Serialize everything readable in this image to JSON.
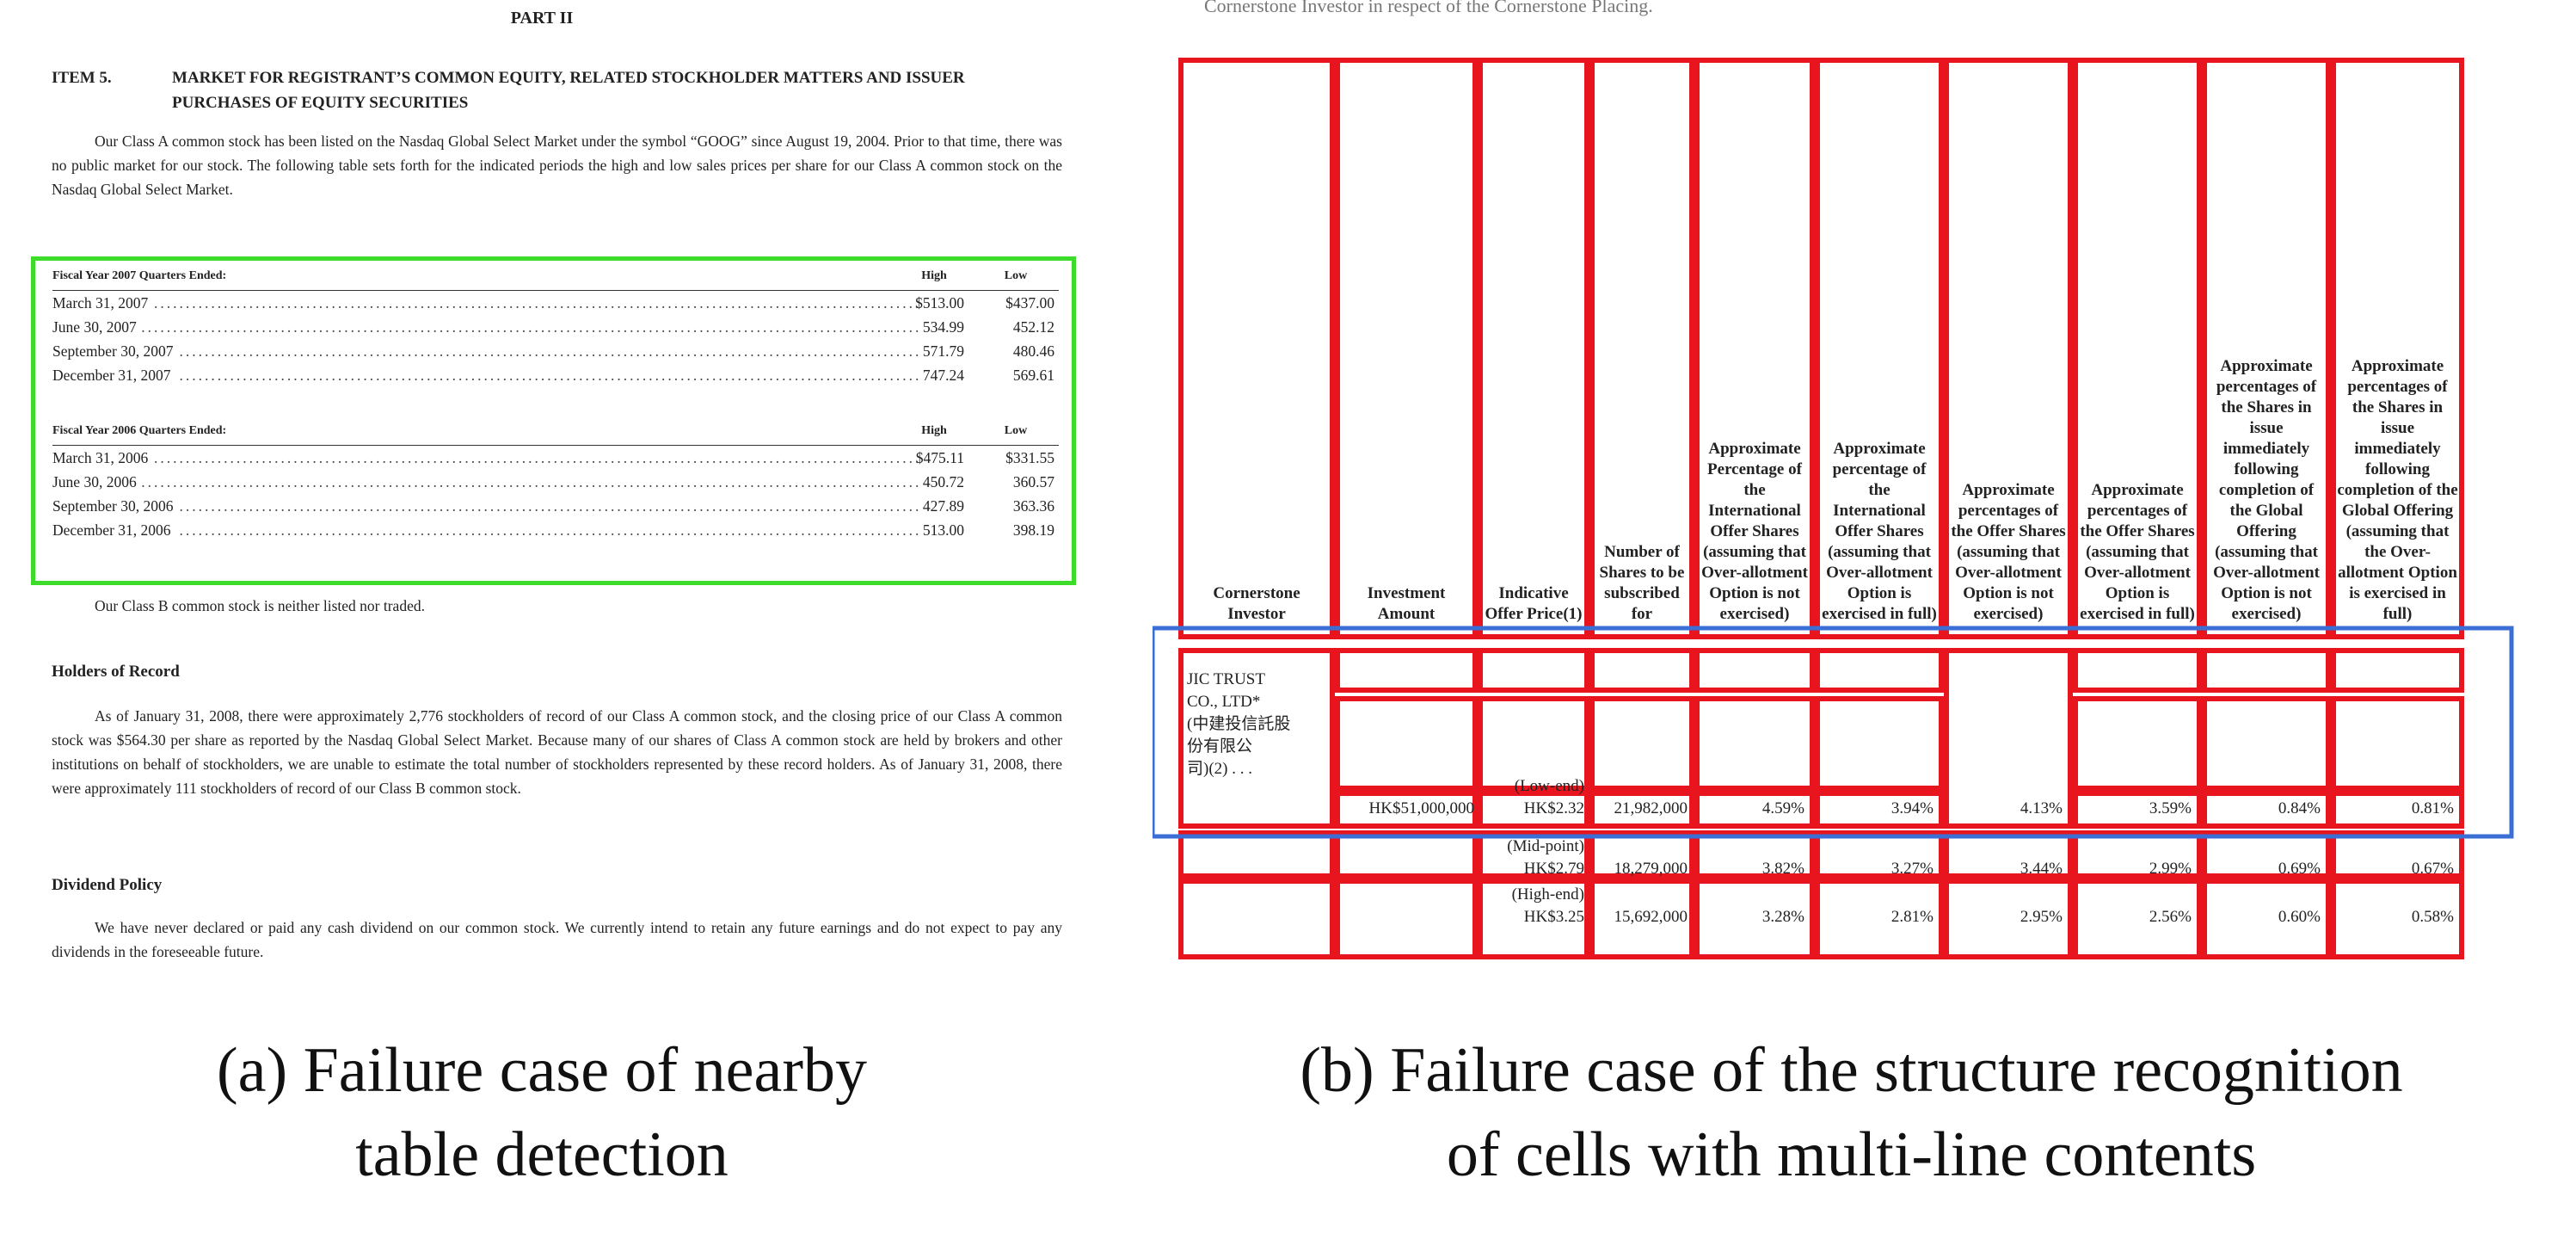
{
  "panel_a": {
    "part": "PART II",
    "item_number": "ITEM 5.",
    "item_title": "MARKET FOR REGISTRANT’S COMMON EQUITY, RELATED STOCKHOLDER MATTERS AND ISSUER PURCHASES OF EQUITY SECURITIES",
    "intro": "Our Class A common stock has been listed on the Nasdaq Global Select Market under the symbol “GOOG” since August 19, 2004. Prior to that time, there was no public market for our stock. The following table sets forth for the indicated periods the high and low sales prices per share for our Class A common stock on the Nasdaq Global Select Market.",
    "table_2007": {
      "label": "Fiscal Year 2007 Quarters Ended:",
      "col_high": "High",
      "col_low": "Low",
      "rows": [
        {
          "period": "March 31, 2007",
          "high": "$513.00",
          "low": "$437.00"
        },
        {
          "period": "June 30, 2007",
          "high": "534.99",
          "low": "452.12"
        },
        {
          "period": "September 30, 2007",
          "high": "571.79",
          "low": "480.46"
        },
        {
          "period": "December 31, 2007",
          "high": "747.24",
          "low": "569.61"
        }
      ]
    },
    "table_2006": {
      "label": "Fiscal Year 2006 Quarters Ended:",
      "col_high": "High",
      "col_low": "Low",
      "rows": [
        {
          "period": "March 31, 2006",
          "high": "$475.11",
          "low": "$331.55"
        },
        {
          "period": "June 30, 2006",
          "high": "450.72",
          "low": "360.57"
        },
        {
          "period": "September 30, 2006",
          "high": "427.89",
          "low": "363.36"
        },
        {
          "period": "December 31, 2006",
          "high": "513.00",
          "low": "398.19"
        }
      ]
    },
    "class_b": "Our Class B common stock is neither listed nor traded.",
    "holders_heading": "Holders of Record",
    "holders_text": "As of January 31, 2008, there were approximately 2,776 stockholders of record of our Class A common stock, and the closing price of our Class A common stock was $564.30 per share as reported by the Nasdaq Global Select Market. Because many of our shares of Class A common stock are held by brokers and other institutions on behalf of stockholders, we are unable to estimate the total number of stockholders represented by these record holders. As of January 31, 2008, there were approximately 111 stockholders of record of our Class B common stock.",
    "dividend_heading": "Dividend Policy",
    "dividend_text": "We have never declared or paid any cash dividend on our common stock. We currently intend to retain any future earnings and do not expect to pay any dividends in the foreseeable future.",
    "caption_line1": "(a) Failure case of nearby",
    "caption_line2": "table detection"
  },
  "panel_b": {
    "top_text": "Cornerstone Investor in respect of the Cornerstone Placing.",
    "headers": [
      "Cornerstone Investor",
      "Investment Amount",
      "Indicative Offer Price(1)",
      "Number of Shares to be subscribed for",
      "Approximate Percentage of the International Offer Shares (assuming that Over-allotment Option is not exercised)",
      "Approximate percentage of the International Offer Shares (assuming that Over-allotment Option is exercised in full)",
      "Approximate percentages of the Offer Shares (assuming that Over-allotment Option is not exercised)",
      "Approximate percentages of the Offer Shares (assuming that Over-allotment Option is exercised in full)",
      "Approximate percentages of the Shares in issue immediately following completion of the Global Offering (assuming that Over-allotment Option is not exercised)",
      "Approximate percentages of the Shares in issue immediately following completion of the Global Offering (assuming that the Over-allotment Option is exercised in full)"
    ],
    "investor_lines": [
      "JIC TRUST",
      "CO., LTD*",
      "(中建投信託股",
      "份有限公",
      "司)(2) . . ."
    ],
    "investment_amount": "HK$51,000,000",
    "rows": [
      {
        "price_label": "(Low-end)",
        "price": "HK$2.32",
        "shares": "21,982,000",
        "p1": "4.59%",
        "p2": "3.94%",
        "p3": "4.13%",
        "p4": "3.59%",
        "p5": "0.84%",
        "p6": "0.81%"
      },
      {
        "price_label": "(Mid-point)",
        "price": "HK$2.79",
        "shares": "18,279,000",
        "p1": "3.82%",
        "p2": "3.27%",
        "p3": "3.44%",
        "p4": "2.99%",
        "p5": "0.69%",
        "p6": "0.67%"
      },
      {
        "price_label": "(High-end)",
        "price": "HK$3.25",
        "shares": "15,692,000",
        "p1": "3.28%",
        "p2": "2.81%",
        "p3": "2.95%",
        "p4": "2.56%",
        "p5": "0.60%",
        "p6": "0.58%"
      }
    ],
    "caption_line1": "(b) Failure case of the structure recognition",
    "caption_line2": "of cells with multi-line contents"
  },
  "colors": {
    "detection_box": "#3ddc2a",
    "cell_box": "#e8141e",
    "row_box": "#3b6fd6"
  }
}
